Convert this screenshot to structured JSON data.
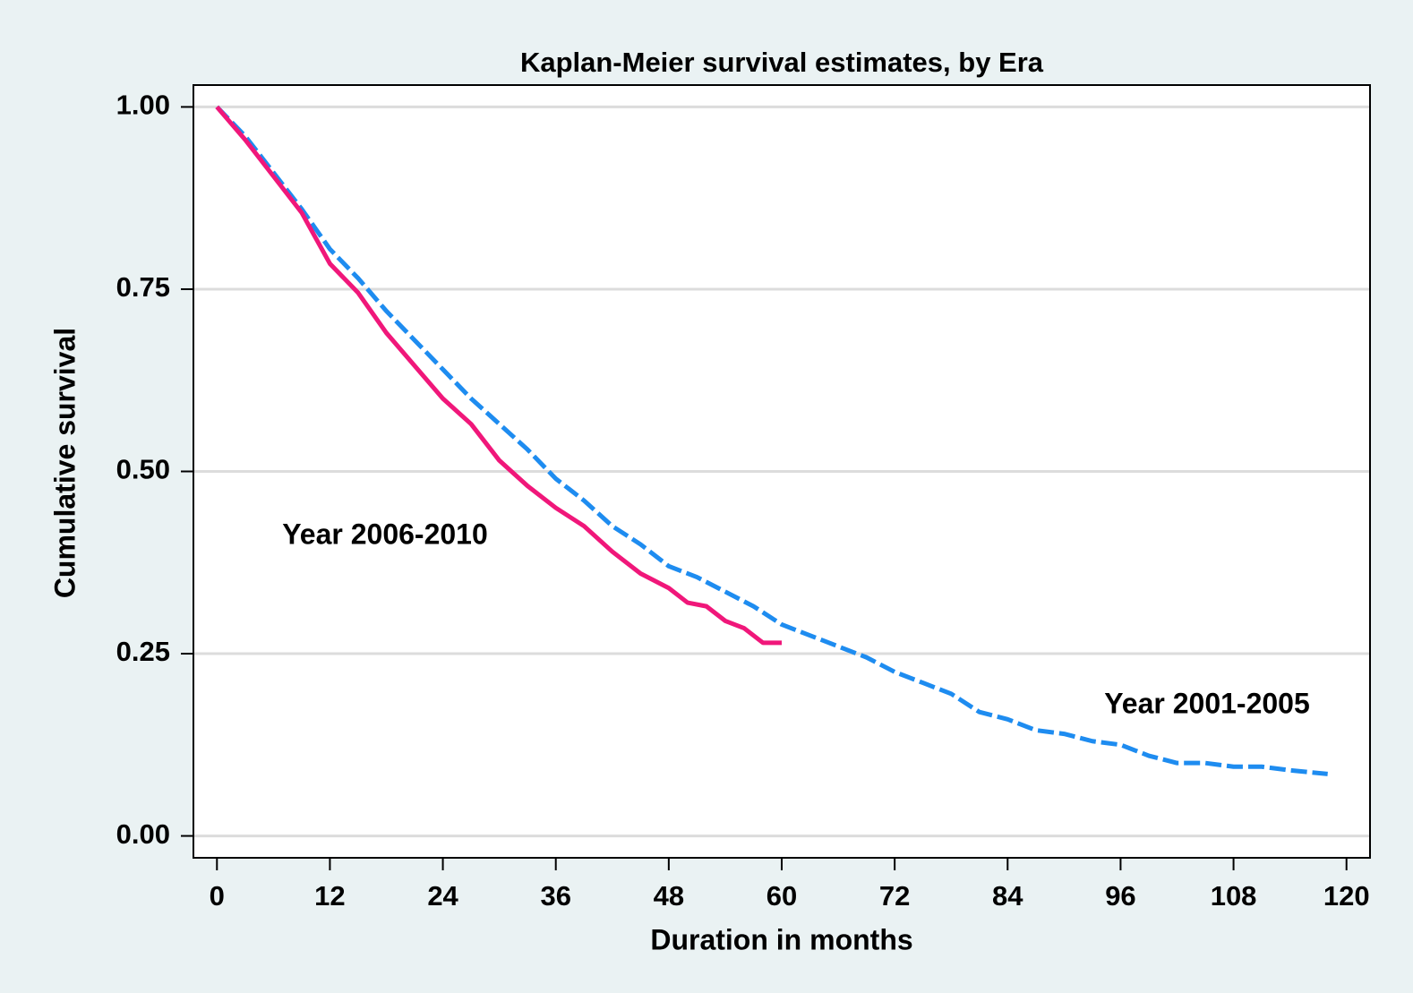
{
  "chart_data": {
    "type": "line",
    "title": "Kaplan-Meier survival estimates, by Era",
    "x_label": "Duration in months",
    "y_label": "Cumulative survival",
    "xlim": [
      -2.5,
      122.5
    ],
    "ylim": [
      -0.03,
      1.03
    ],
    "xticks": [
      0,
      12,
      24,
      36,
      48,
      60,
      72,
      84,
      96,
      108,
      120
    ],
    "yticks": [
      {
        "value": 0,
        "label": "0.00"
      },
      {
        "value": 0.25,
        "label": "0.25"
      },
      {
        "value": 0.5,
        "label": "0.50"
      },
      {
        "value": 0.75,
        "label": "0.75"
      },
      {
        "value": 1,
        "label": "1.00"
      }
    ],
    "grid": true,
    "series": [
      {
        "name": "Year 2001-2005",
        "color": "#1e8cf0",
        "dashed": true,
        "x": [
          0,
          3,
          6,
          9,
          12,
          15,
          18,
          21,
          24,
          27,
          30,
          33,
          36,
          39,
          42,
          45,
          48,
          51,
          54,
          57,
          60,
          63,
          66,
          69,
          72,
          75,
          78,
          81,
          84,
          87,
          90,
          93,
          96,
          99,
          102,
          105,
          108,
          111,
          114,
          118
        ],
        "values": [
          1.0,
          0.96,
          0.91,
          0.86,
          0.805,
          0.765,
          0.72,
          0.68,
          0.64,
          0.6,
          0.565,
          0.53,
          0.49,
          0.46,
          0.425,
          0.4,
          0.37,
          0.355,
          0.335,
          0.315,
          0.29,
          0.275,
          0.26,
          0.245,
          0.225,
          0.21,
          0.195,
          0.17,
          0.16,
          0.145,
          0.14,
          0.13,
          0.125,
          0.11,
          0.1,
          0.1,
          0.095,
          0.095,
          0.09,
          0.085
        ]
      },
      {
        "name": "Year 2006-2010",
        "color": "#f0177a",
        "dashed": false,
        "x": [
          0,
          3,
          6,
          9,
          12,
          15,
          18,
          21,
          24,
          27,
          30,
          33,
          36,
          39,
          42,
          45,
          48,
          50,
          52,
          54,
          56,
          58,
          60
        ],
        "values": [
          1.0,
          0.955,
          0.905,
          0.855,
          0.785,
          0.745,
          0.69,
          0.645,
          0.6,
          0.565,
          0.515,
          0.48,
          0.45,
          0.425,
          0.39,
          0.36,
          0.34,
          0.32,
          0.315,
          0.295,
          0.285,
          0.265,
          0.265
        ]
      }
    ]
  }
}
